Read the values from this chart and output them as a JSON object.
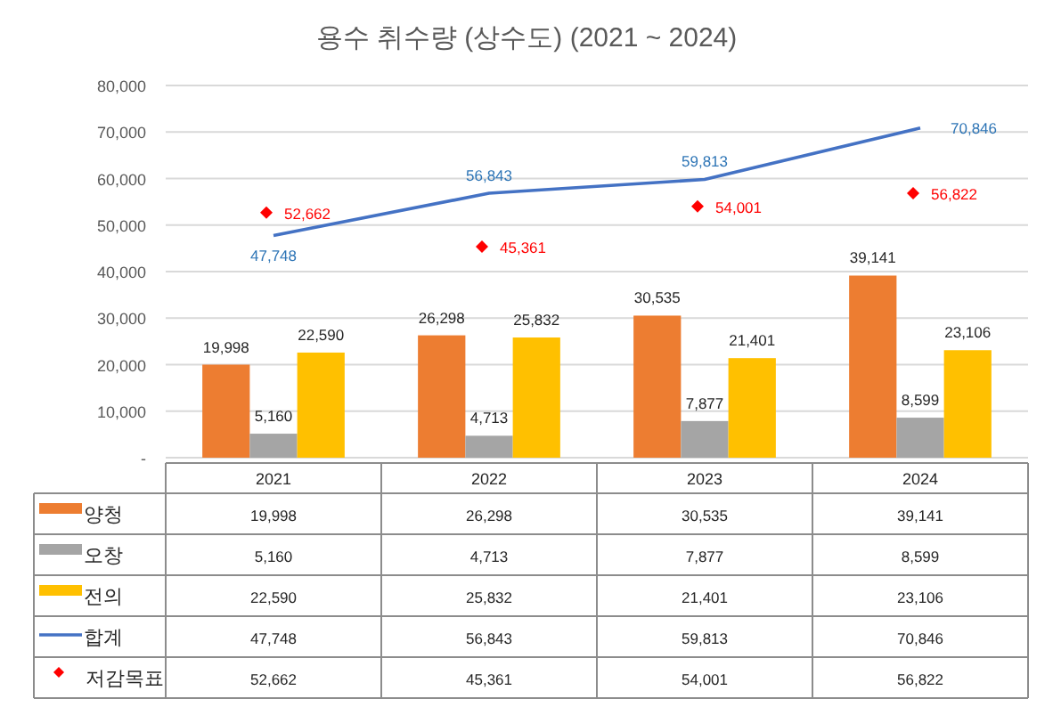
{
  "chart_data": {
    "type": "bar",
    "title": "용수 취수량 (상수도) (2021 ~ 2024)",
    "categories": [
      "2021",
      "2022",
      "2023",
      "2024"
    ],
    "series": [
      {
        "name": "양청",
        "color": "#ed7d31",
        "values": [
          19998,
          26298,
          30535,
          39141
        ],
        "value_labels": [
          "19,998",
          "26,298",
          "30,535",
          "39,141"
        ]
      },
      {
        "name": "오창",
        "color": "#a5a5a5",
        "values": [
          5160,
          4713,
          7877,
          8599
        ],
        "value_labels": [
          "5,160",
          "4,713",
          "7,877",
          "8,599"
        ]
      },
      {
        "name": "전의",
        "color": "#ffc000",
        "values": [
          22590,
          25832,
          21401,
          23106
        ],
        "value_labels": [
          "22,590",
          "25,832",
          "21,401",
          "23,106"
        ]
      },
      {
        "name": "합계",
        "type": "line",
        "color": "#4472c4",
        "values": [
          47748,
          56843,
          59813,
          70846
        ],
        "value_labels": [
          "47,748",
          "56,843",
          "59,813",
          "70,846"
        ]
      },
      {
        "name": "저감목표",
        "type": "scatter",
        "color": "#ff0000",
        "marker": "diamond",
        "values": [
          52662,
          45361,
          54001,
          56822
        ],
        "value_labels": [
          "52,662",
          "45,361",
          "54,001",
          "56,822"
        ]
      }
    ],
    "ylim": [
      0,
      80000
    ],
    "yticks": [
      {
        "value": 0,
        "label": "-"
      },
      {
        "value": 10000,
        "label": "10,000"
      },
      {
        "value": 20000,
        "label": "20,000"
      },
      {
        "value": 30000,
        "label": "30,000"
      },
      {
        "value": 40000,
        "label": "40,000"
      },
      {
        "value": 50000,
        "label": "50,000"
      },
      {
        "value": 60000,
        "label": "60,000"
      },
      {
        "value": 70000,
        "label": "70,000"
      },
      {
        "value": 80000,
        "label": "80,000"
      }
    ],
    "grid": "y",
    "legend": "bottom"
  }
}
